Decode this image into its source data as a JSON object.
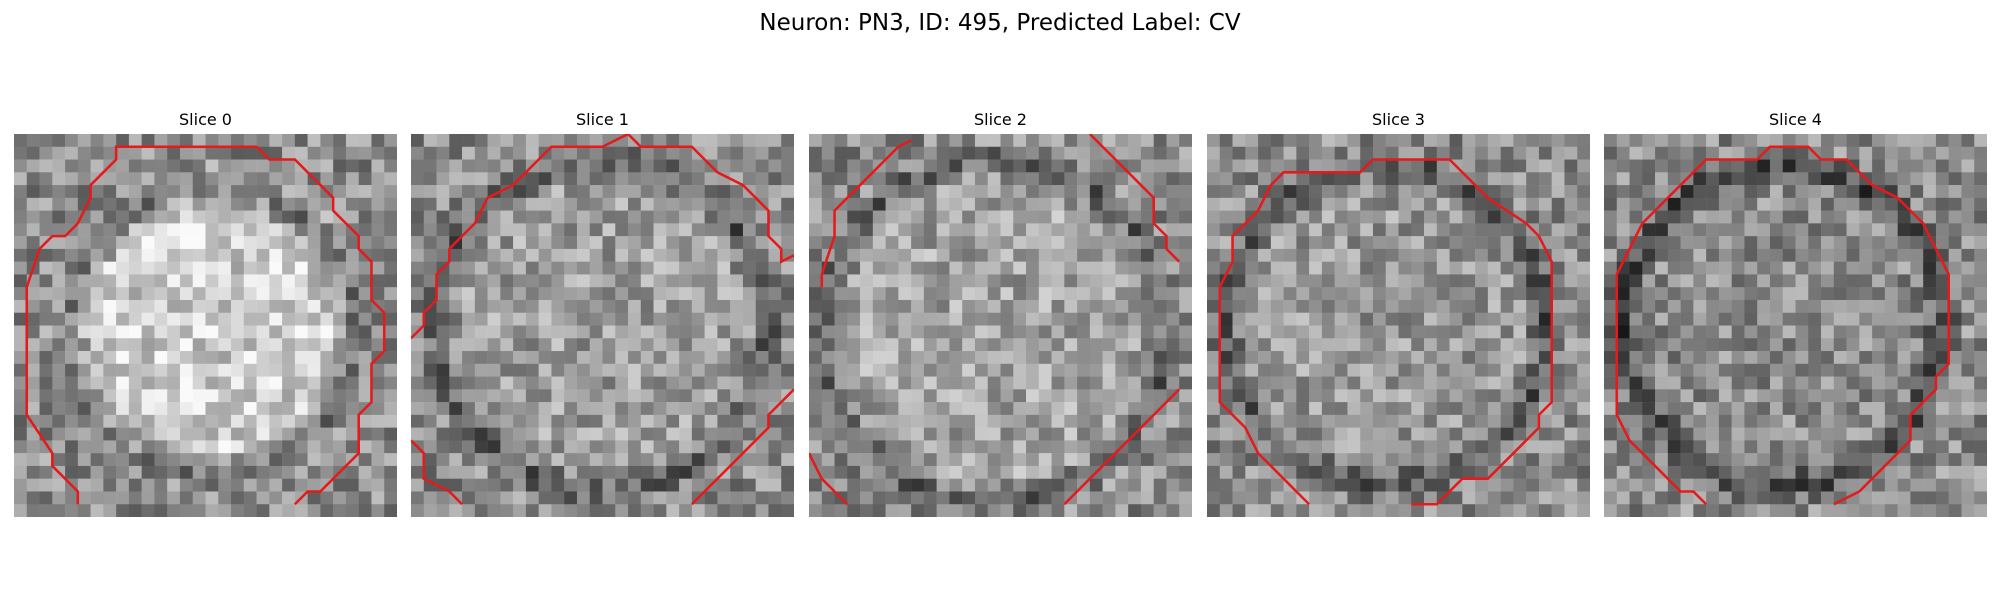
{
  "figure": {
    "title": "Neuron: PN3, ID: 495, Predicted Label: CV",
    "contour_color": "#e41a1c",
    "panels": [
      {
        "title": "Slice 0"
      },
      {
        "title": "Slice 1"
      },
      {
        "title": "Slice 2"
      },
      {
        "title": "Slice 3"
      },
      {
        "title": "Slice 4"
      }
    ]
  }
}
